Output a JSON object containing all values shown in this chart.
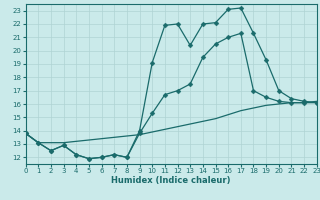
{
  "xlabel": "Humidex (Indice chaleur)",
  "xlim": [
    0,
    23
  ],
  "ylim": [
    11.5,
    23.5
  ],
  "yticks": [
    12,
    13,
    14,
    15,
    16,
    17,
    18,
    19,
    20,
    21,
    22,
    23
  ],
  "xticks": [
    0,
    1,
    2,
    3,
    4,
    5,
    6,
    7,
    8,
    9,
    10,
    11,
    12,
    13,
    14,
    15,
    16,
    17,
    18,
    19,
    20,
    21,
    22,
    23
  ],
  "bg_color": "#caeaea",
  "grid_color": "#afd4d4",
  "line_color": "#1a6b6b",
  "curve1_x": [
    0,
    1,
    2,
    3,
    4,
    5,
    6,
    7,
    8,
    9,
    10,
    11,
    12,
    13,
    14,
    15,
    16,
    17,
    18,
    19,
    20,
    21,
    22,
    23
  ],
  "curve1_y": [
    13.8,
    13.1,
    12.5,
    12.9,
    12.2,
    11.9,
    12.0,
    12.2,
    12.0,
    14.0,
    19.1,
    21.9,
    22.0,
    20.4,
    22.0,
    22.1,
    23.1,
    23.2,
    21.3,
    19.3,
    17.0,
    16.4,
    16.2,
    16.1
  ],
  "curve2_x": [
    0,
    1,
    2,
    3,
    4,
    5,
    6,
    7,
    8,
    9,
    10,
    11,
    12,
    13,
    14,
    15,
    16,
    17,
    18,
    19,
    20,
    21,
    22,
    23
  ],
  "curve2_y": [
    13.8,
    13.1,
    12.5,
    12.9,
    12.2,
    11.9,
    12.0,
    12.2,
    12.0,
    13.8,
    15.3,
    16.7,
    17.0,
    17.5,
    19.5,
    20.5,
    21.0,
    21.3,
    17.0,
    16.5,
    16.2,
    16.1,
    16.1,
    16.1
  ],
  "curve3_x": [
    0,
    1,
    2,
    3,
    4,
    5,
    6,
    7,
    8,
    9,
    10,
    11,
    12,
    13,
    14,
    15,
    16,
    17,
    18,
    19,
    20,
    21,
    22,
    23
  ],
  "curve3_y": [
    13.8,
    13.1,
    13.1,
    13.1,
    13.2,
    13.3,
    13.4,
    13.5,
    13.6,
    13.7,
    13.9,
    14.1,
    14.3,
    14.5,
    14.7,
    14.9,
    15.2,
    15.5,
    15.7,
    15.9,
    16.0,
    16.1,
    16.1,
    16.2
  ]
}
